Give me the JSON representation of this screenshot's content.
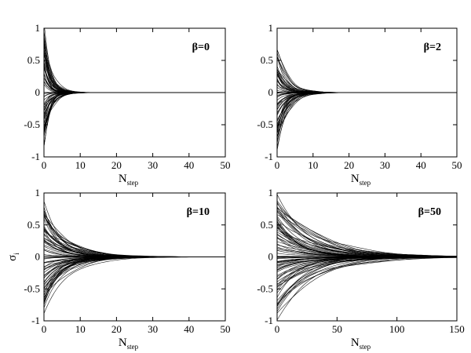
{
  "chart_data": [
    {
      "type": "line",
      "panel": "top-left",
      "annotation": "β=0",
      "xlabel_main": "N",
      "xlabel_sub": "step",
      "ylabel_main": "σ",
      "ylabel_sub": "i",
      "show_ylabel": false,
      "xlim": [
        0,
        50
      ],
      "ylim": [
        -1,
        1
      ],
      "xticks": [
        "0",
        "10",
        "20",
        "30",
        "40",
        "50"
      ],
      "yticks": [
        "-1",
        "-0.5",
        "0",
        "0.5",
        "1"
      ],
      "decay_scale": 1.6,
      "n_traces": 60,
      "series_envelope": {
        "x": [
          0,
          2,
          4,
          6,
          8,
          10,
          50
        ],
        "upper": [
          0.95,
          0.45,
          0.2,
          0.07,
          0.02,
          0.0,
          0.0
        ],
        "lower": [
          -0.85,
          -0.4,
          -0.18,
          -0.06,
          -0.02,
          0.0,
          0.0
        ]
      }
    },
    {
      "type": "line",
      "panel": "top-right",
      "annotation": "β=2",
      "xlabel_main": "N",
      "xlabel_sub": "step",
      "ylabel_main": "σ",
      "ylabel_sub": "i",
      "show_ylabel": false,
      "xlim": [
        0,
        50
      ],
      "ylim": [
        -1,
        1
      ],
      "xticks": [
        "0",
        "10",
        "20",
        "30",
        "40",
        "50"
      ],
      "yticks": [
        "-1",
        "-0.5",
        "0",
        "0.5",
        "1"
      ],
      "decay_scale": 2.3,
      "n_traces": 60,
      "series_envelope": {
        "x": [
          0,
          2,
          4,
          6,
          8,
          10,
          12,
          50
        ],
        "upper": [
          0.7,
          0.45,
          0.25,
          0.12,
          0.05,
          0.02,
          0.0,
          0.0
        ],
        "lower": [
          -0.9,
          -0.5,
          -0.28,
          -0.13,
          -0.06,
          -0.02,
          0.0,
          0.0
        ]
      }
    },
    {
      "type": "line",
      "panel": "bottom-left",
      "annotation": "β=10",
      "xlabel_main": "N",
      "xlabel_sub": "step",
      "ylabel_main": "σ",
      "ylabel_sub": "i",
      "show_ylabel": true,
      "xlim": [
        0,
        50
      ],
      "ylim": [
        -1,
        1
      ],
      "xticks": [
        "0",
        "10",
        "20",
        "30",
        "40",
        "50"
      ],
      "yticks": [
        "-1",
        "-0.5",
        "0",
        "0.5",
        "1"
      ],
      "decay_scale": 5.5,
      "n_traces": 70,
      "series_envelope": {
        "x": [
          0,
          5,
          10,
          15,
          20,
          25,
          30,
          50
        ],
        "upper": [
          0.82,
          0.45,
          0.22,
          0.1,
          0.04,
          0.01,
          0.0,
          0.0
        ],
        "lower": [
          -0.85,
          -0.45,
          -0.22,
          -0.1,
          -0.04,
          -0.01,
          0.0,
          0.0
        ]
      }
    },
    {
      "type": "line",
      "panel": "bottom-right",
      "annotation": "β=50",
      "xlabel_main": "N",
      "xlabel_sub": "step",
      "ylabel_main": "σ",
      "ylabel_sub": "i",
      "show_ylabel": false,
      "xlim": [
        0,
        150
      ],
      "ylim": [
        -1,
        1
      ],
      "xticks": [
        "0",
        "50",
        "100",
        "150"
      ],
      "yticks": [
        "-1",
        "-0.5",
        "0",
        "0.5",
        "1"
      ],
      "decay_scale": 25,
      "n_traces": 80,
      "series_envelope": {
        "x": [
          0,
          25,
          50,
          75,
          100,
          125,
          150
        ],
        "upper": [
          0.98,
          0.55,
          0.25,
          0.1,
          0.03,
          0.01,
          0.0
        ],
        "lower": [
          -0.95,
          -0.5,
          -0.22,
          -0.08,
          -0.02,
          0.0,
          0.0
        ]
      }
    }
  ]
}
